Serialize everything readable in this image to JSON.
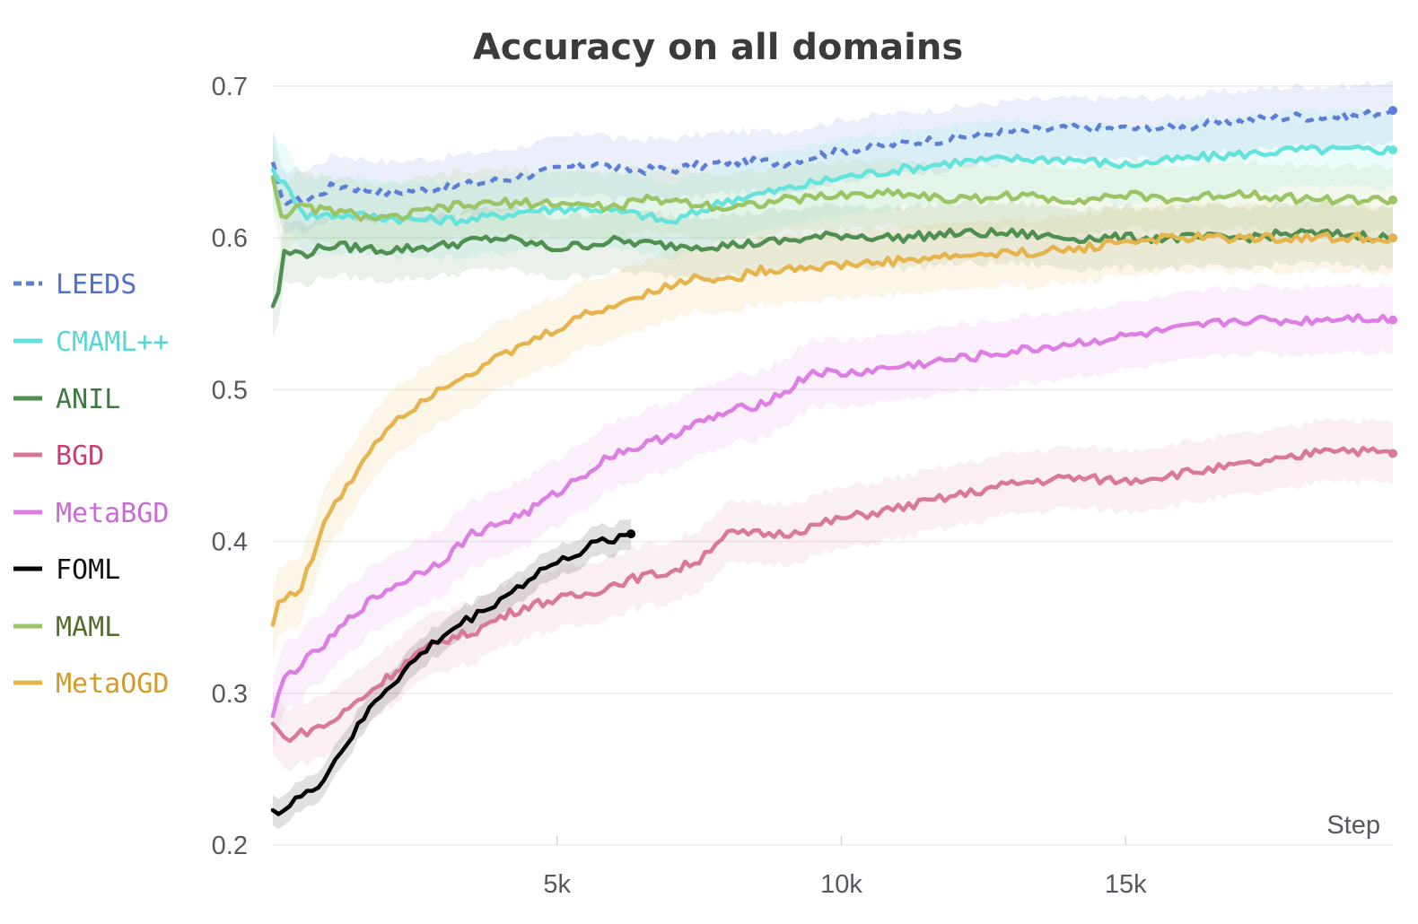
{
  "chart_data": {
    "type": "line",
    "title": "Accuracy on all domains",
    "xlabel": "Step",
    "ylabel": "",
    "xlim": [
      0,
      19700
    ],
    "ylim": [
      0.2,
      0.7
    ],
    "x_ticks": [
      5000,
      10000,
      15000
    ],
    "x_tick_labels": [
      "5k",
      "10k",
      "15k"
    ],
    "y_ticks": [
      0.2,
      0.3,
      0.4,
      0.5,
      0.6,
      0.7
    ],
    "y_tick_labels": [
      "0.2",
      "0.3",
      "0.4",
      "0.5",
      "0.6",
      "0.7"
    ],
    "grid": true,
    "legend_position": "left",
    "series": [
      {
        "name": "LEEDS",
        "color": "#5b7fd6",
        "label_color": "#4f72cc",
        "dash": true,
        "band": 0.02,
        "points": [
          [
            0,
            0.65
          ],
          [
            150,
            0.625
          ],
          [
            600,
            0.625
          ],
          [
            1100,
            0.635
          ],
          [
            2000,
            0.63
          ],
          [
            3000,
            0.633
          ],
          [
            4000,
            0.638
          ],
          [
            5000,
            0.645
          ],
          [
            5700,
            0.65
          ],
          [
            6000,
            0.645
          ],
          [
            7000,
            0.645
          ],
          [
            8000,
            0.65
          ],
          [
            9000,
            0.65
          ],
          [
            10000,
            0.658
          ],
          [
            11000,
            0.662
          ],
          [
            12000,
            0.666
          ],
          [
            13000,
            0.67
          ],
          [
            14000,
            0.672
          ],
          [
            15000,
            0.672
          ],
          [
            16000,
            0.673
          ],
          [
            17000,
            0.677
          ],
          [
            18000,
            0.68
          ],
          [
            19000,
            0.68
          ],
          [
            19700,
            0.684
          ]
        ]
      },
      {
        "name": "CMAML++",
        "color": "#62e3dc",
        "label_color": "#5ad6d2",
        "dash": false,
        "band": 0.025,
        "points": [
          [
            0,
            0.645
          ],
          [
            200,
            0.635
          ],
          [
            600,
            0.615
          ],
          [
            1500,
            0.615
          ],
          [
            2500,
            0.612
          ],
          [
            3500,
            0.612
          ],
          [
            4500,
            0.618
          ],
          [
            5500,
            0.62
          ],
          [
            6500,
            0.615
          ],
          [
            7000,
            0.61
          ],
          [
            8000,
            0.625
          ],
          [
            9000,
            0.632
          ],
          [
            10000,
            0.64
          ],
          [
            11000,
            0.645
          ],
          [
            12000,
            0.65
          ],
          [
            13000,
            0.652
          ],
          [
            14000,
            0.652
          ],
          [
            15000,
            0.648
          ],
          [
            16000,
            0.652
          ],
          [
            17000,
            0.655
          ],
          [
            18000,
            0.658
          ],
          [
            19000,
            0.658
          ],
          [
            19700,
            0.658
          ]
        ]
      },
      {
        "name": "ANIL",
        "color": "#4f8f50",
        "label_color": "#3f7a3f",
        "dash": false,
        "band": 0.02,
        "points": [
          [
            0,
            0.555
          ],
          [
            100,
            0.565
          ],
          [
            200,
            0.59
          ],
          [
            600,
            0.59
          ],
          [
            1000,
            0.595
          ],
          [
            2000,
            0.592
          ],
          [
            3000,
            0.595
          ],
          [
            3500,
            0.598
          ],
          [
            4000,
            0.6
          ],
          [
            5000,
            0.593
          ],
          [
            6000,
            0.598
          ],
          [
            7000,
            0.595
          ],
          [
            8000,
            0.595
          ],
          [
            9000,
            0.598
          ],
          [
            10000,
            0.602
          ],
          [
            11000,
            0.6
          ],
          [
            12000,
            0.603
          ],
          [
            13000,
            0.603
          ],
          [
            14000,
            0.6
          ],
          [
            15000,
            0.6
          ],
          [
            16000,
            0.6
          ],
          [
            17000,
            0.6
          ],
          [
            18000,
            0.603
          ],
          [
            19000,
            0.602
          ],
          [
            19700,
            0.6
          ]
        ]
      },
      {
        "name": "BGD",
        "color": "#d9789a",
        "label_color": "#c94070",
        "dash": false,
        "band": 0.02,
        "points": [
          [
            0,
            0.28
          ],
          [
            200,
            0.27
          ],
          [
            600,
            0.275
          ],
          [
            1000,
            0.28
          ],
          [
            1500,
            0.295
          ],
          [
            2000,
            0.31
          ],
          [
            2500,
            0.325
          ],
          [
            3000,
            0.335
          ],
          [
            3500,
            0.34
          ],
          [
            4000,
            0.35
          ],
          [
            4500,
            0.358
          ],
          [
            5000,
            0.362
          ],
          [
            5500,
            0.365
          ],
          [
            6000,
            0.372
          ],
          [
            6500,
            0.377
          ],
          [
            7000,
            0.38
          ],
          [
            7500,
            0.388
          ],
          [
            7800,
            0.4
          ],
          [
            8000,
            0.405
          ],
          [
            9000,
            0.405
          ],
          [
            10000,
            0.415
          ],
          [
            11000,
            0.422
          ],
          [
            12000,
            0.43
          ],
          [
            13000,
            0.438
          ],
          [
            14000,
            0.442
          ],
          [
            15000,
            0.44
          ],
          [
            16000,
            0.445
          ],
          [
            17000,
            0.45
          ],
          [
            18000,
            0.455
          ],
          [
            18500,
            0.462
          ],
          [
            19000,
            0.46
          ],
          [
            19700,
            0.458
          ]
        ]
      },
      {
        "name": "MetaBGD",
        "color": "#dc7ee3",
        "label_color": "#c96bd6",
        "dash": false,
        "band": 0.022,
        "points": [
          [
            0,
            0.285
          ],
          [
            200,
            0.31
          ],
          [
            600,
            0.322
          ],
          [
            1000,
            0.335
          ],
          [
            1500,
            0.355
          ],
          [
            2000,
            0.368
          ],
          [
            2500,
            0.378
          ],
          [
            3000,
            0.388
          ],
          [
            3500,
            0.405
          ],
          [
            4000,
            0.412
          ],
          [
            4500,
            0.42
          ],
          [
            5000,
            0.432
          ],
          [
            5500,
            0.445
          ],
          [
            6000,
            0.458
          ],
          [
            6500,
            0.463
          ],
          [
            7000,
            0.47
          ],
          [
            7500,
            0.478
          ],
          [
            8000,
            0.485
          ],
          [
            8500,
            0.49
          ],
          [
            9000,
            0.498
          ],
          [
            9500,
            0.512
          ],
          [
            10000,
            0.51
          ],
          [
            11000,
            0.515
          ],
          [
            12000,
            0.52
          ],
          [
            13000,
            0.525
          ],
          [
            14000,
            0.53
          ],
          [
            15000,
            0.535
          ],
          [
            16000,
            0.54
          ],
          [
            17000,
            0.546
          ],
          [
            18000,
            0.545
          ],
          [
            19000,
            0.548
          ],
          [
            19700,
            0.546
          ]
        ]
      },
      {
        "name": "FOML",
        "color": "#000000",
        "label_color": "#111111",
        "dash": false,
        "band": 0.01,
        "points": [
          [
            0,
            0.223
          ],
          [
            200,
            0.223
          ],
          [
            400,
            0.23
          ],
          [
            600,
            0.233
          ],
          [
            800,
            0.24
          ],
          [
            1000,
            0.25
          ],
          [
            1200,
            0.262
          ],
          [
            1400,
            0.272
          ],
          [
            1600,
            0.283
          ],
          [
            1800,
            0.295
          ],
          [
            2000,
            0.303
          ],
          [
            2200,
            0.31
          ],
          [
            2400,
            0.318
          ],
          [
            2600,
            0.325
          ],
          [
            2800,
            0.332
          ],
          [
            3000,
            0.338
          ],
          [
            3200,
            0.343
          ],
          [
            3400,
            0.348
          ],
          [
            3600,
            0.352
          ],
          [
            3800,
            0.357
          ],
          [
            4000,
            0.362
          ],
          [
            4200,
            0.367
          ],
          [
            4400,
            0.372
          ],
          [
            4600,
            0.378
          ],
          [
            4800,
            0.383
          ],
          [
            5000,
            0.385
          ],
          [
            5200,
            0.39
          ],
          [
            5400,
            0.393
          ],
          [
            5600,
            0.397
          ],
          [
            5800,
            0.4
          ],
          [
            6000,
            0.402
          ],
          [
            6200,
            0.404
          ],
          [
            6300,
            0.405
          ]
        ]
      },
      {
        "name": "MAML",
        "color": "#9bc465",
        "label_color": "#556b2f",
        "dash": false,
        "band": 0.022,
        "points": [
          [
            0,
            0.64
          ],
          [
            150,
            0.615
          ],
          [
            500,
            0.62
          ],
          [
            1000,
            0.618
          ],
          [
            2000,
            0.612
          ],
          [
            3000,
            0.62
          ],
          [
            4000,
            0.623
          ],
          [
            5000,
            0.623
          ],
          [
            6000,
            0.62
          ],
          [
            6500,
            0.625
          ],
          [
            7000,
            0.625
          ],
          [
            8000,
            0.62
          ],
          [
            9000,
            0.625
          ],
          [
            10000,
            0.628
          ],
          [
            11000,
            0.63
          ],
          [
            12000,
            0.625
          ],
          [
            13000,
            0.628
          ],
          [
            14000,
            0.625
          ],
          [
            15000,
            0.628
          ],
          [
            16000,
            0.625
          ],
          [
            17000,
            0.63
          ],
          [
            18000,
            0.626
          ],
          [
            19000,
            0.625
          ],
          [
            19700,
            0.625
          ]
        ]
      },
      {
        "name": "MetaOGD",
        "color": "#e5b44d",
        "label_color": "#d49a2a",
        "dash": false,
        "band": 0.022,
        "points": [
          [
            0,
            0.345
          ],
          [
            100,
            0.36
          ],
          [
            300,
            0.365
          ],
          [
            500,
            0.37
          ],
          [
            800,
            0.4
          ],
          [
            1000,
            0.42
          ],
          [
            1300,
            0.435
          ],
          [
            1600,
            0.455
          ],
          [
            1900,
            0.47
          ],
          [
            2200,
            0.482
          ],
          [
            2600,
            0.492
          ],
          [
            3000,
            0.503
          ],
          [
            3400,
            0.51
          ],
          [
            3800,
            0.518
          ],
          [
            4200,
            0.525
          ],
          [
            4600,
            0.533
          ],
          [
            5000,
            0.54
          ],
          [
            5400,
            0.548
          ],
          [
            5800,
            0.553
          ],
          [
            6200,
            0.558
          ],
          [
            6600,
            0.565
          ],
          [
            7000,
            0.568
          ],
          [
            7500,
            0.575
          ],
          [
            8000,
            0.572
          ],
          [
            8500,
            0.578
          ],
          [
            9000,
            0.58
          ],
          [
            10000,
            0.582
          ],
          [
            11000,
            0.585
          ],
          [
            12000,
            0.588
          ],
          [
            13000,
            0.59
          ],
          [
            14000,
            0.592
          ],
          [
            15000,
            0.598
          ],
          [
            16000,
            0.6
          ],
          [
            17000,
            0.6
          ],
          [
            18000,
            0.6
          ],
          [
            19000,
            0.6
          ],
          [
            19700,
            0.6
          ]
        ]
      }
    ]
  }
}
